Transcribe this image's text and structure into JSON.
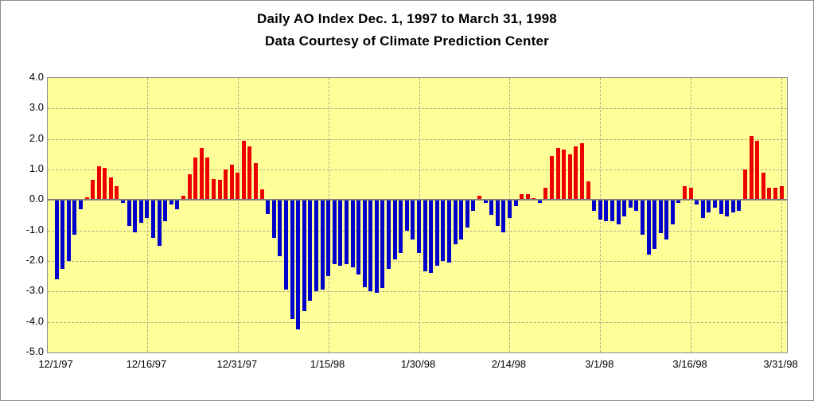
{
  "chart": {
    "title": "Daily AO Index Dec. 1, 1997 to March 31, 1998",
    "subtitle": "Data Courtesy of Climate Prediction Center"
  },
  "chart_data": {
    "type": "bar",
    "title": "Daily AO Index Dec. 1, 1997 to March 31, 1998",
    "subtitle": "Data Courtesy of Climate Prediction Center",
    "x_unit": "day",
    "x_start": "12/1/97",
    "x_end": "3/31/98",
    "num_days": 121,
    "x_tick_labels": [
      "12/1/97",
      "12/16/97",
      "12/31/97",
      "1/15/98",
      "1/30/98",
      "2/14/98",
      "3/1/98",
      "3/16/98",
      "3/31/98"
    ],
    "x_tick_day_index": [
      0,
      15,
      30,
      45,
      60,
      75,
      90,
      105,
      120
    ],
    "y_tick_labels": [
      "4.0",
      "3.0",
      "2.0",
      "1.0",
      "0.0",
      "-1.0",
      "-2.0",
      "-3.0",
      "-4.0",
      "-5.0"
    ],
    "ylim": [
      -5,
      4
    ],
    "grid": "dashed horizontal and vertical on yellow plot background",
    "legend": "none",
    "colors": {
      "positive_bar": "#ee0000",
      "negative_bar": "#0000cc",
      "plot_background": "#ffff99",
      "gridline": "#b3a88a",
      "zero_axis": "#808080",
      "border": "#8c8c8c",
      "text": "#000000"
    },
    "values": [
      -2.6,
      -2.25,
      -2.0,
      -1.15,
      -0.3,
      0.1,
      0.65,
      1.1,
      1.05,
      0.75,
      0.45,
      -0.1,
      -0.85,
      -1.05,
      -0.75,
      -0.6,
      -1.25,
      -1.5,
      -0.7,
      -0.15,
      -0.3,
      0.15,
      0.85,
      1.4,
      1.7,
      1.4,
      0.7,
      0.65,
      1.0,
      1.15,
      0.9,
      1.95,
      1.75,
      1.2,
      0.35,
      -0.45,
      -1.25,
      -1.85,
      -2.95,
      -3.9,
      -4.25,
      -3.65,
      -3.3,
      -3.0,
      -2.95,
      -2.5,
      -2.1,
      -2.15,
      -2.1,
      -2.2,
      -2.45,
      -2.85,
      -3.0,
      -3.05,
      -2.9,
      -2.25,
      -1.95,
      -1.75,
      -1.0,
      -1.3,
      -1.75,
      -2.35,
      -2.4,
      -2.15,
      -2.0,
      -2.05,
      -1.45,
      -1.3,
      -0.9,
      -0.35,
      0.15,
      -0.1,
      -0.5,
      -0.85,
      -1.05,
      -0.6,
      -0.2,
      0.2,
      0.2,
      0.05,
      -0.1,
      0.4,
      1.45,
      1.7,
      1.65,
      1.5,
      1.75,
      1.85,
      0.6,
      -0.35,
      -0.65,
      -0.7,
      -0.7,
      -0.8,
      -0.55,
      -0.25,
      -0.35,
      -1.15,
      -1.8,
      -1.6,
      -1.1,
      -1.3,
      -0.8,
      -0.1,
      0.45,
      0.4,
      -0.15,
      -0.6,
      -0.4,
      -0.25,
      -0.45,
      -0.55,
      -0.4,
      -0.35,
      1.0,
      2.1,
      1.95,
      0.9,
      0.4,
      0.4,
      0.45
    ]
  }
}
